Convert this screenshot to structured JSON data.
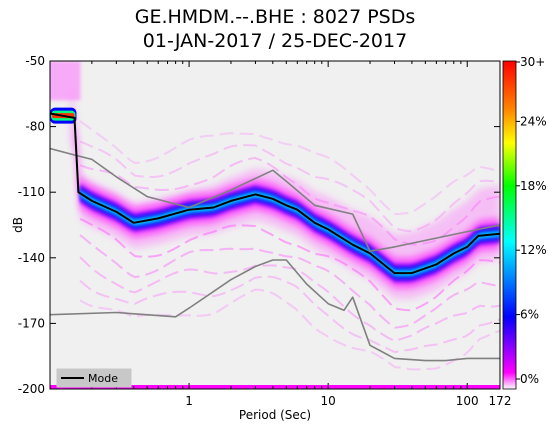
{
  "title_line1": "GE.HMDM.--.BHE : 8027 PSDs",
  "title_line2": "01-JAN-2017 / 25-DEC-2017",
  "chart_data": {
    "type": "heatmap",
    "title": "GE.HMDM.--.BHE : 8027 PSDs",
    "subtitle": "01-JAN-2017 / 25-DEC-2017",
    "xlabel": "Period (Sec)",
    "ylabel": "dB",
    "x_scale": "log",
    "xlim": [
      0.1,
      172
    ],
    "ylim": [
      -200,
      -50
    ],
    "x_ticks": [
      {
        "value": 1,
        "label": "1"
      },
      {
        "value": 10,
        "label": "10"
      },
      {
        "value": 100,
        "label": "100"
      },
      {
        "value": 172,
        "label": "172"
      }
    ],
    "y_ticks": [
      {
        "value": -50,
        "label": "-50"
      },
      {
        "value": -80,
        "label": "-80"
      },
      {
        "value": -110,
        "label": "-110"
      },
      {
        "value": -140,
        "label": "-140"
      },
      {
        "value": -170,
        "label": "-170"
      },
      {
        "value": -200,
        "label": "-200"
      }
    ],
    "colorbar": {
      "ticks": [
        "0%",
        "6%",
        "12%",
        "18%",
        "24%",
        "30+"
      ],
      "colors": [
        "#ffffff",
        "#ff00ff",
        "#0000ff",
        "#00ffff",
        "#00ff00",
        "#ffff00",
        "#ff8800",
        "#ff0000"
      ]
    },
    "legend": {
      "entries": [
        "Mode"
      ],
      "placement": "bottom-left"
    },
    "series": [
      {
        "name": "Mode",
        "color": "#000000",
        "x": [
          0.1,
          0.15,
          0.16,
          0.2,
          0.3,
          0.4,
          0.6,
          1,
          1.5,
          2,
          3,
          4,
          5,
          6,
          8,
          10,
          15,
          20,
          30,
          40,
          60,
          80,
          100,
          120,
          172
        ],
        "y": [
          -74,
          -76,
          -110,
          -114,
          -119,
          -124,
          -122,
          -118,
          -117,
          -114,
          -111,
          -113,
          -116,
          -118,
          -124,
          -127,
          -134,
          -138,
          -147,
          -147,
          -143,
          -138,
          -135,
          -130,
          -129
        ]
      },
      {
        "color": "#808080",
        "x": [
          0.1,
          0.15,
          0.2,
          0.3,
          0.5,
          1,
          2,
          4,
          5,
          8,
          15,
          20,
          30,
          100,
          172
        ],
        "y": [
          -90,
          -93,
          -95,
          -103,
          -112,
          -117,
          -109,
          -100,
          -105,
          -116,
          -120,
          -137,
          -135,
          -128,
          -125
        ]
      },
      {
        "color": "#808080",
        "x": [
          0.1,
          0.3,
          0.8,
          1,
          2,
          3,
          4,
          5,
          7,
          10,
          13,
          15,
          20,
          30,
          50,
          70,
          100,
          172
        ],
        "y": [
          -166,
          -165,
          -167,
          -163,
          -150,
          -144,
          -141,
          -141,
          -152,
          -161,
          -164,
          -158,
          -180,
          -186,
          -187,
          -187,
          -186,
          -186
        ]
      }
    ]
  }
}
